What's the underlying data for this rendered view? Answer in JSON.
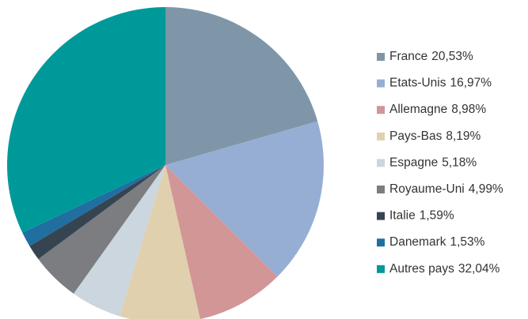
{
  "chart_data": {
    "type": "pie",
    "categories": [
      "France",
      "Etats-Unis",
      "Allemagne",
      "Pays-Bas",
      "Espagne",
      "Royaume-Uni",
      "Italie",
      "Danemark",
      "Autres pays"
    ],
    "values": [
      20.53,
      16.97,
      8.98,
      8.19,
      5.18,
      4.99,
      1.59,
      1.53,
      32.04
    ],
    "value_labels": [
      "20,53%",
      "16,97%",
      "8,98%",
      "8,19%",
      "5,18%",
      "4,99%",
      "1,59%",
      "1,53%",
      "32,04%"
    ],
    "colors": [
      "#7f96a8",
      "#97aed4",
      "#d29696",
      "#e0d0ae",
      "#cbd6df",
      "#7b7d80",
      "#364452",
      "#1f6fa1",
      "#00999a"
    ],
    "legend": "right"
  }
}
